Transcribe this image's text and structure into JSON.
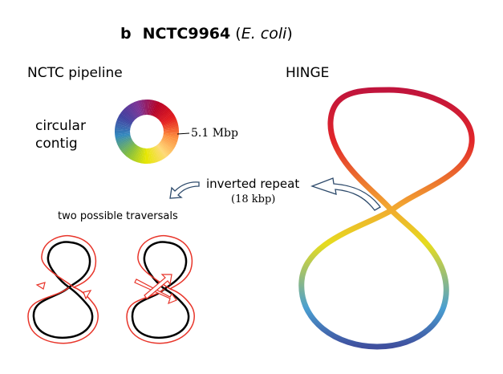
{
  "figure": {
    "panel_letter": "b",
    "strain": "NCTC9964",
    "species": "E. coli"
  },
  "left_panel": {
    "heading": "NCTC pipeline",
    "contig_label": "circular\ncontig",
    "size_label": "5.1 Mbp",
    "traversal_label": "two possible traversals"
  },
  "right_panel": {
    "heading": "HINGE",
    "repeat_label": "inverted repeat",
    "repeat_size": "(18 kbp)"
  },
  "colors": {
    "path_outline": "#e8352a",
    "path_core": "#000000",
    "arrow_stroke": "#2d4a6b",
    "gradient_stops": [
      "#b40026",
      "#e31a1c",
      "#fd8d3c",
      "#fed976",
      "#e6e600",
      "#7fbc41",
      "#3288bd",
      "#3f3f9f",
      "#7b3294",
      "#b40026"
    ]
  },
  "icons": [
    "curved-arrow-icon",
    "curved-arrow-icon"
  ]
}
